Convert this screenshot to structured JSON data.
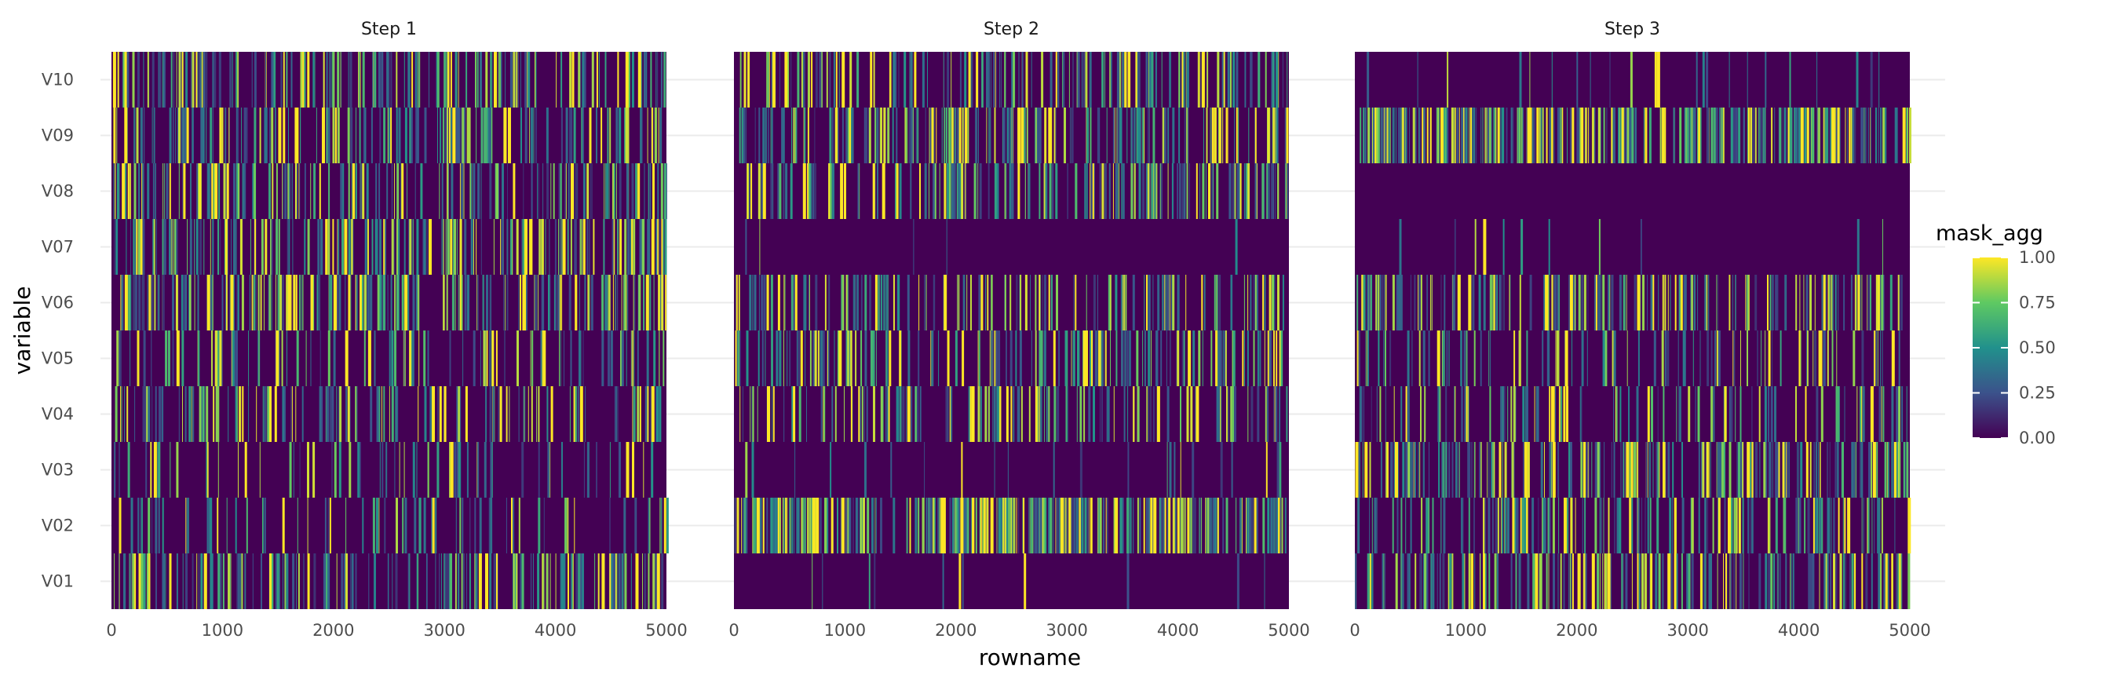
{
  "chart_data": {
    "type": "heatmap",
    "xlabel": "rowname",
    "ylabel": "variable",
    "x_range": [
      0,
      5000
    ],
    "x_ticks": [
      "0",
      "1000",
      "2000",
      "3000",
      "4000",
      "5000"
    ],
    "y_categories": [
      "V01",
      "V02",
      "V03",
      "V04",
      "V05",
      "V06",
      "V07",
      "V08",
      "V09",
      "V10"
    ],
    "grid": true,
    "legend": {
      "title": "mask_agg",
      "position": "right",
      "range": [
        0,
        1
      ],
      "ticks": [
        "0.00",
        "0.25",
        "0.50",
        "0.75",
        "1.00"
      ],
      "colormap": "viridis",
      "colors": [
        "#440154",
        "#3b528b",
        "#21918c",
        "#5ec962",
        "#fde725"
      ]
    },
    "panels": [
      {
        "title": "Step 1",
        "row_density": {
          "V01": 0.32,
          "V02": 0.14,
          "V03": 0.12,
          "V04": 0.24,
          "V05": 0.18,
          "V06": 0.4,
          "V07": 0.34,
          "V08": 0.3,
          "V09": 0.28,
          "V10": 0.3
        }
      },
      {
        "title": "Step 2",
        "row_density": {
          "V01": 0.02,
          "V02": 0.6,
          "V03": 0.04,
          "V04": 0.26,
          "V05": 0.28,
          "V06": 0.28,
          "V07": 0.01,
          "V08": 0.36,
          "V09": 0.34,
          "V10": 0.3
        }
      },
      {
        "title": "Step 3",
        "row_density": {
          "V01": 0.34,
          "V02": 0.28,
          "V03": 0.42,
          "V04": 0.2,
          "V05": 0.18,
          "V06": 0.34,
          "V07": 0.02,
          "V08": 0.0,
          "V09": 0.62,
          "V10": 0.04
        }
      }
    ]
  }
}
